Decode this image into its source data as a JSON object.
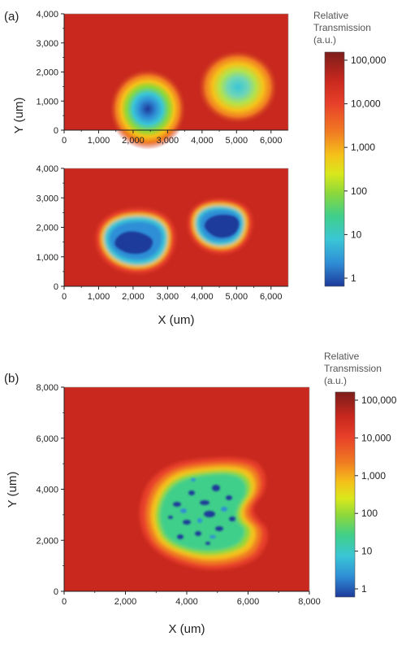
{
  "panels": {
    "a_label": "(a)",
    "b_label": "(b)"
  },
  "chart_data": [
    {
      "type": "heatmap",
      "panel": "a-top",
      "xlabel": "",
      "ylabel": "Y (um)",
      "xlim": [
        0,
        6500
      ],
      "ylim": [
        0,
        4000
      ],
      "x_ticks": [
        "0",
        "1,000",
        "2,000",
        "3,000",
        "4,000",
        "5,000",
        "6,000"
      ],
      "y_ticks": [
        "0",
        "1,000",
        "2,000",
        "3,000",
        "4,000"
      ],
      "features": [
        {
          "center": [
            2400,
            700
          ],
          "min_value": 1
        },
        {
          "center": [
            5000,
            1500
          ],
          "min_value": 10
        }
      ],
      "background_value": 100000
    },
    {
      "type": "heatmap",
      "panel": "a-bottom",
      "xlabel": "X (um)",
      "ylabel": "",
      "xlim": [
        0,
        6500
      ],
      "ylim": [
        0,
        4000
      ],
      "x_ticks": [
        "0",
        "1,000",
        "2,000",
        "3,000",
        "4,000",
        "5,000",
        "6,000"
      ],
      "y_ticks": [
        "0",
        "1,000",
        "2,000",
        "3,000",
        "4,000"
      ],
      "features": [
        {
          "center": [
            2150,
            1500
          ],
          "min_value": 1
        },
        {
          "center": [
            4800,
            2200
          ],
          "min_value": 1
        }
      ],
      "background_value": 100000
    },
    {
      "type": "heatmap",
      "panel": "b",
      "xlabel": "X (um)",
      "ylabel": "Y (um)",
      "xlim": [
        0,
        8000
      ],
      "ylim": [
        0,
        8000
      ],
      "x_ticks": [
        "0",
        "2,000",
        "4,000",
        "6,000",
        "8,000"
      ],
      "y_ticks": [
        "0",
        "2,000",
        "4,000",
        "6,000",
        "8,000"
      ],
      "features": [
        {
          "center": [
            4600,
            3400
          ],
          "min_value": 1
        }
      ],
      "background_value": 100000
    }
  ],
  "colorbar": {
    "title_line1": "Relative",
    "title_line2": "Transmission",
    "title_line3": "(a.u.)",
    "scale": "log",
    "ticks": [
      "100,000",
      "10,000",
      "1,000",
      "100",
      "10",
      "1"
    ],
    "colors": [
      "#7c1d1a",
      "#c8281e",
      "#e8402a",
      "#f07a22",
      "#f5c21a",
      "#d9e81c",
      "#8ed83a",
      "#3fcf8a",
      "#3ac6d6",
      "#2f8ed6",
      "#1d3a9a"
    ]
  }
}
